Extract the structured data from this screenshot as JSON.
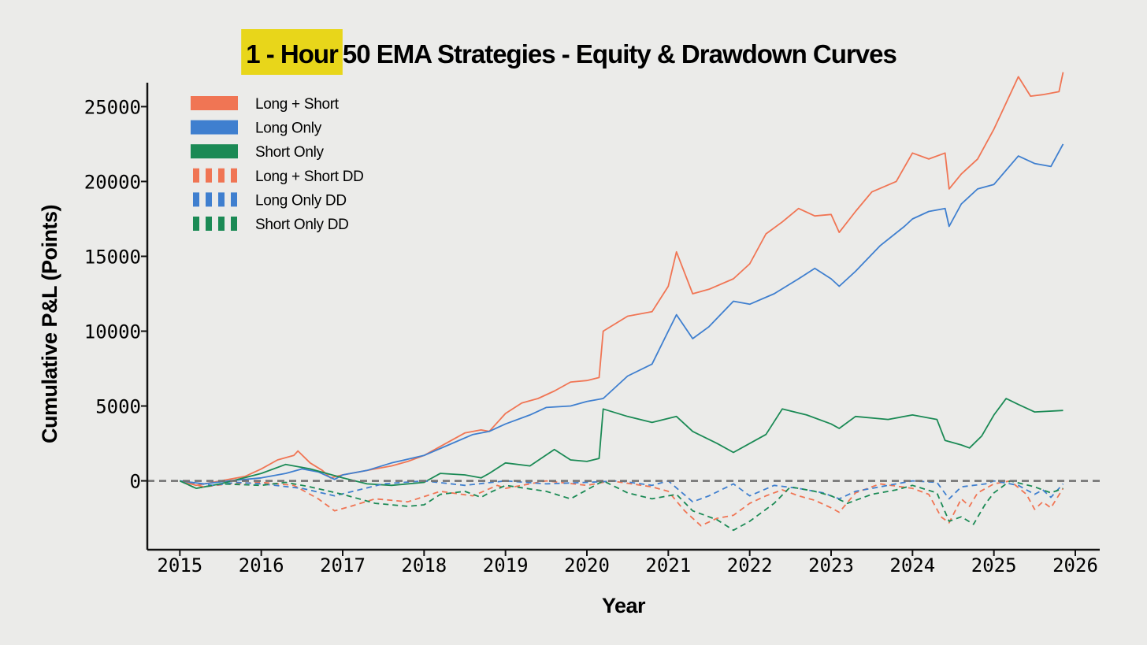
{
  "chart_data": {
    "type": "line",
    "title_highlight": "1 - Hour",
    "title_rest": "50 EMA Strategies - Equity & Drawdown Curves",
    "xlabel": "Year",
    "ylabel": "Cumulative P&L (Points)",
    "xlim": [
      2014.6,
      2026.3
    ],
    "ylim": [
      -4600,
      26600
    ],
    "x_ticks": [
      2015,
      2016,
      2017,
      2018,
      2019,
      2020,
      2021,
      2022,
      2023,
      2024,
      2025,
      2026
    ],
    "y_ticks": [
      0,
      5000,
      10000,
      15000,
      20000,
      25000
    ],
    "zero_line": "dashed",
    "grid": false,
    "legend_position": "top-left",
    "colors": {
      "long_short": "#f07554",
      "long_only": "#3f7fcf",
      "short_only": "#1b8a55",
      "highlight": "#e8d61a",
      "zero_line": "#707070",
      "axis": "#111111"
    },
    "legend": [
      {
        "label": "Long + Short",
        "series": "Long + Short",
        "style": "solid"
      },
      {
        "label": "Long Only",
        "series": "Long Only",
        "style": "solid"
      },
      {
        "label": "Short Only",
        "series": "Short Only",
        "style": "solid"
      },
      {
        "label": "Long + Short DD",
        "series": "Long + Short DD",
        "style": "dashed"
      },
      {
        "label": "Long Only DD",
        "series": "Long Only DD",
        "style": "dashed"
      },
      {
        "label": "Short Only DD",
        "series": "Short Only DD",
        "style": "dashed"
      }
    ],
    "series": [
      {
        "name": "Long + Short",
        "color": "#f07554",
        "style": "solid",
        "x": [
          2015.0,
          2015.2,
          2015.5,
          2015.8,
          2016.0,
          2016.2,
          2016.4,
          2016.45,
          2016.6,
          2016.75,
          2016.85,
          2017.0,
          2017.2,
          2017.4,
          2017.6,
          2017.8,
          2018.0,
          2018.3,
          2018.5,
          2018.7,
          2018.8,
          2019.0,
          2019.2,
          2019.4,
          2019.6,
          2019.8,
          2020.0,
          2020.15,
          2020.2,
          2020.5,
          2020.8,
          2021.0,
          2021.1,
          2021.3,
          2021.5,
          2021.8,
          2022.0,
          2022.2,
          2022.4,
          2022.6,
          2022.8,
          2023.0,
          2023.1,
          2023.3,
          2023.5,
          2023.8,
          2024.0,
          2024.2,
          2024.4,
          2024.45,
          2024.6,
          2024.8,
          2025.0,
          2025.3,
          2025.45,
          2025.6,
          2025.8,
          2025.85
        ],
        "y": [
          0,
          -300,
          0,
          300,
          800,
          1400,
          1700,
          2000,
          1200,
          700,
          200,
          400,
          600,
          800,
          1000,
          1300,
          1700,
          2600,
          3200,
          3400,
          3300,
          4500,
          5200,
          5500,
          6000,
          6600,
          6700,
          6900,
          10000,
          11000,
          11300,
          13000,
          15300,
          12500,
          12800,
          13500,
          14500,
          16500,
          17300,
          18200,
          17700,
          17800,
          16600,
          18000,
          19300,
          20000,
          21900,
          21500,
          21900,
          19500,
          20500,
          21500,
          23500,
          27000,
          25700,
          25800,
          26000,
          27300
        ]
      },
      {
        "name": "Long Only",
        "color": "#3f7fcf",
        "style": "solid",
        "x": [
          2015.0,
          2015.3,
          2015.6,
          2016.0,
          2016.3,
          2016.5,
          2016.7,
          2016.9,
          2017.0,
          2017.3,
          2017.6,
          2018.0,
          2018.3,
          2018.6,
          2018.8,
          2019.0,
          2019.3,
          2019.5,
          2019.8,
          2020.0,
          2020.2,
          2020.5,
          2020.8,
          2021.0,
          2021.1,
          2021.3,
          2021.5,
          2021.8,
          2022.0,
          2022.3,
          2022.6,
          2022.8,
          2023.0,
          2023.1,
          2023.3,
          2023.6,
          2023.9,
          2024.0,
          2024.2,
          2024.4,
          2024.45,
          2024.6,
          2024.8,
          2025.0,
          2025.3,
          2025.5,
          2025.7,
          2025.85
        ],
        "y": [
          0,
          -200,
          0,
          200,
          500,
          800,
          600,
          100,
          400,
          700,
          1200,
          1700,
          2400,
          3100,
          3300,
          3800,
          4400,
          4900,
          5000,
          5300,
          5500,
          7000,
          7800,
          10000,
          11100,
          9500,
          10300,
          12000,
          11800,
          12500,
          13500,
          14200,
          13500,
          13000,
          14000,
          15700,
          17000,
          17500,
          18000,
          18200,
          17000,
          18500,
          19500,
          19800,
          21700,
          21200,
          21000,
          22500
        ]
      },
      {
        "name": "Short Only",
        "color": "#1b8a55",
        "style": "solid",
        "x": [
          2015.0,
          2015.2,
          2015.5,
          2016.0,
          2016.3,
          2016.6,
          2017.0,
          2017.3,
          2017.6,
          2018.0,
          2018.2,
          2018.5,
          2018.7,
          2018.8,
          2019.0,
          2019.3,
          2019.6,
          2019.8,
          2020.0,
          2020.15,
          2020.2,
          2020.5,
          2020.8,
          2021.1,
          2021.3,
          2021.6,
          2021.8,
          2022.0,
          2022.2,
          2022.4,
          2022.7,
          2023.0,
          2023.1,
          2023.3,
          2023.7,
          2024.0,
          2024.3,
          2024.4,
          2024.6,
          2024.7,
          2024.85,
          2025.0,
          2025.15,
          2025.3,
          2025.5,
          2025.85
        ],
        "y": [
          0,
          -500,
          -200,
          500,
          1100,
          800,
          200,
          -200,
          -300,
          -100,
          500,
          400,
          200,
          500,
          1200,
          1000,
          2100,
          1400,
          1300,
          1500,
          4800,
          4300,
          3900,
          4300,
          3300,
          2500,
          1900,
          2500,
          3100,
          4800,
          4400,
          3800,
          3500,
          4300,
          4100,
          4400,
          4100,
          2700,
          2400,
          2200,
          3000,
          4400,
          5500,
          5100,
          4600,
          4700
        ]
      },
      {
        "name": "Long + Short DD",
        "color": "#f07554",
        "style": "dashed",
        "x": [
          2015.0,
          2015.3,
          2015.6,
          2016.0,
          2016.4,
          2016.7,
          2016.9,
          2017.1,
          2017.4,
          2017.8,
          2018.2,
          2018.6,
          2018.9,
          2019.0,
          2019.5,
          2020.0,
          2020.3,
          2020.8,
          2021.0,
          2021.2,
          2021.4,
          2021.6,
          2021.8,
          2022.0,
          2022.2,
          2022.4,
          2022.6,
          2022.8,
          2023.0,
          2023.1,
          2023.3,
          2023.6,
          2024.0,
          2024.2,
          2024.35,
          2024.45,
          2024.6,
          2024.7,
          2024.8,
          2025.0,
          2025.2,
          2025.4,
          2025.5,
          2025.6,
          2025.7,
          2025.85
        ],
        "y": [
          0,
          -400,
          -200,
          -100,
          -300,
          -1200,
          -2000,
          -1700,
          -1200,
          -1400,
          -700,
          -1000,
          -300,
          -500,
          0,
          -300,
          0,
          -400,
          -700,
          -2000,
          -3000,
          -2500,
          -2300,
          -1500,
          -1000,
          -600,
          -1000,
          -1300,
          -1800,
          -2100,
          -800,
          -200,
          -500,
          -900,
          -2400,
          -2800,
          -1200,
          -1700,
          -800,
          -200,
          0,
          -900,
          -1900,
          -1400,
          -1800,
          -500
        ]
      },
      {
        "name": "Long Only DD",
        "color": "#3f7fcf",
        "style": "dashed",
        "x": [
          2015.0,
          2015.4,
          2015.7,
          2016.0,
          2016.5,
          2016.9,
          2017.2,
          2017.5,
          2018.0,
          2018.5,
          2019.0,
          2019.5,
          2020.0,
          2020.4,
          2020.8,
          2021.0,
          2021.3,
          2021.5,
          2021.8,
          2022.0,
          2022.3,
          2022.6,
          2022.9,
          2023.1,
          2023.3,
          2023.7,
          2024.0,
          2024.3,
          2024.45,
          2024.6,
          2024.9,
          2025.0,
          2025.3,
          2025.5,
          2025.6,
          2025.7,
          2025.85
        ],
        "y": [
          0,
          -300,
          -100,
          -200,
          -500,
          -1000,
          -600,
          -200,
          0,
          -300,
          0,
          -200,
          -100,
          0,
          -300,
          0,
          -1400,
          -1000,
          -200,
          -1000,
          -300,
          -500,
          -800,
          -1200,
          -700,
          -300,
          0,
          -100,
          -1200,
          -400,
          -200,
          0,
          -300,
          -900,
          -600,
          -1100,
          -200
        ]
      },
      {
        "name": "Short Only DD",
        "color": "#1b8a55",
        "style": "dashed",
        "x": [
          2015.0,
          2015.2,
          2015.5,
          2016.0,
          2016.3,
          2016.6,
          2017.0,
          2017.4,
          2017.8,
          2018.0,
          2018.2,
          2018.5,
          2018.7,
          2018.8,
          2019.0,
          2019.5,
          2019.8,
          2020.0,
          2020.2,
          2020.5,
          2020.8,
          2021.1,
          2021.3,
          2021.6,
          2021.8,
          2022.0,
          2022.3,
          2022.5,
          2022.8,
          2023.0,
          2023.2,
          2023.5,
          2023.8,
          2024.0,
          2024.3,
          2024.45,
          2024.6,
          2024.75,
          2024.9,
          2025.0,
          2025.2,
          2025.5,
          2025.7,
          2025.85
        ],
        "y": [
          0,
          -500,
          -200,
          -300,
          -100,
          -400,
          -900,
          -1500,
          -1700,
          -1600,
          -900,
          -700,
          -1100,
          -800,
          -300,
          -700,
          -1200,
          -600,
          0,
          -800,
          -1200,
          -900,
          -2000,
          -2600,
          -3300,
          -2700,
          -1500,
          -400,
          -700,
          -1000,
          -1500,
          -900,
          -600,
          -300,
          -800,
          -2700,
          -2400,
          -2900,
          -1500,
          -800,
          0,
          -400,
          -800,
          -500
        ]
      }
    ]
  }
}
